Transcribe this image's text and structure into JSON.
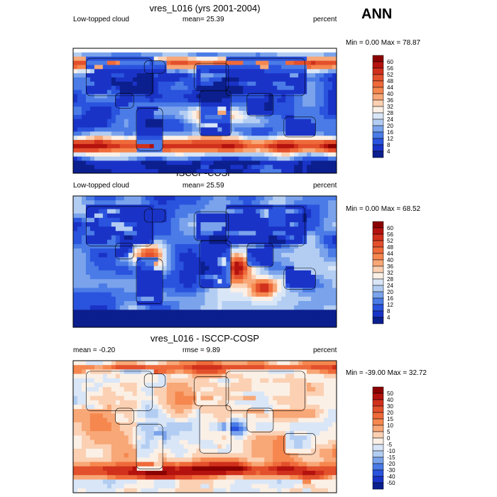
{
  "season_label": "ANN",
  "chart_data": [
    {
      "type": "heatmap",
      "title": "vres_L016 (yrs 2001-2004)",
      "left_label": "Low-topped cloud",
      "center_label": "mean=  25.39",
      "right_label": "percent",
      "minmax_label": "Min =   0.00 Max =  78.87",
      "min": 0.0,
      "max": 78.87,
      "mean": 25.39,
      "colorbar": {
        "levels": [
          "60",
          "56",
          "52",
          "48",
          "44",
          "40",
          "36",
          "32",
          "28",
          "24",
          "20",
          "16",
          "12",
          "8",
          "4"
        ],
        "colors": [
          "#8b0000",
          "#b4120e",
          "#d0301c",
          "#e3502c",
          "#ef6a3a",
          "#f5874f",
          "#f8a777",
          "#fbd0b3",
          "#fbf0e6",
          "#d9e6f7",
          "#b3cdf2",
          "#7aa3ec",
          "#4a7be6",
          "#2a53de",
          "#1a33c7",
          "#0c1f8e"
        ]
      }
    },
    {
      "type": "heatmap",
      "title": "ISCCP-COSP",
      "left_label": "Low-topped cloud",
      "center_label": "mean=  25.59",
      "right_label": "percent",
      "minmax_label": "Min =   0.00 Max =  68.52",
      "min": 0.0,
      "max": 68.52,
      "mean": 25.59,
      "colorbar": {
        "levels": [
          "60",
          "56",
          "52",
          "48",
          "44",
          "40",
          "36",
          "32",
          "28",
          "24",
          "20",
          "16",
          "12",
          "8",
          "4"
        ],
        "colors": [
          "#8b0000",
          "#b4120e",
          "#d0301c",
          "#e3502c",
          "#ef6a3a",
          "#f5874f",
          "#f8a777",
          "#fbd0b3",
          "#fbf0e6",
          "#d9e6f7",
          "#b3cdf2",
          "#7aa3ec",
          "#4a7be6",
          "#2a53de",
          "#1a33c7",
          "#0c1f8e"
        ]
      }
    },
    {
      "type": "heatmap",
      "title": "vres_L016 - ISCCP-COSP",
      "left_label": "mean =  -0.20",
      "center_label": "rmse =   9.89",
      "right_label": "percent",
      "minmax_label": "Min = -39.00 Max =  32.72",
      "min": -39.0,
      "max": 32.72,
      "mean": -0.2,
      "rmse": 9.89,
      "colorbar": {
        "levels": [
          "50",
          "40",
          "30",
          "20",
          "15",
          "10",
          "5",
          "0",
          "-5",
          "-10",
          "-15",
          "-20",
          "-30",
          "-40",
          "-50"
        ],
        "colors": [
          "#8b0000",
          "#b4120e",
          "#d0301c",
          "#e3502c",
          "#ef6a3a",
          "#f5874f",
          "#f8a777",
          "#fbd0b3",
          "#fbf0e6",
          "#d9e6f7",
          "#b3cdf2",
          "#7aa3ec",
          "#4a7be6",
          "#2a53de",
          "#1a33c7",
          "#0c1f8e"
        ]
      }
    }
  ]
}
